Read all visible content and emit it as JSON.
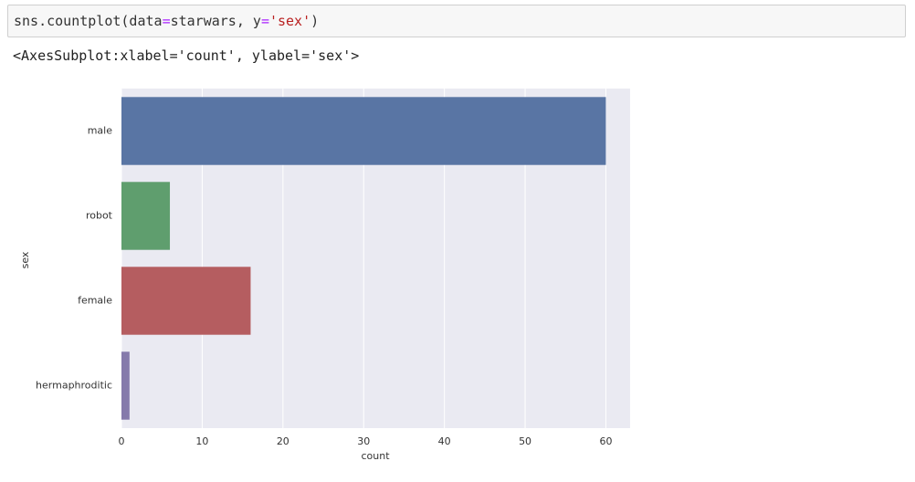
{
  "code": {
    "tokens": [
      "sns.countplot(data",
      "=",
      "starwars, y",
      "=",
      "'sex'",
      ")"
    ]
  },
  "output": {
    "text": "<AxesSubplot:xlabel='count', ylabel='sex'>"
  },
  "chart_data": {
    "type": "bar",
    "orientation": "horizontal",
    "xlabel": "count",
    "ylabel": "sex",
    "categories": [
      "male",
      "robot",
      "female",
      "hermaphroditic"
    ],
    "values": [
      60,
      6,
      16,
      1
    ],
    "colors": [
      "#5975a4",
      "#5f9e6e",
      "#b55d60",
      "#857aab"
    ],
    "xlim": [
      0,
      63
    ],
    "xticks": [
      0,
      10,
      20,
      30,
      40,
      50,
      60
    ],
    "grid": true
  }
}
